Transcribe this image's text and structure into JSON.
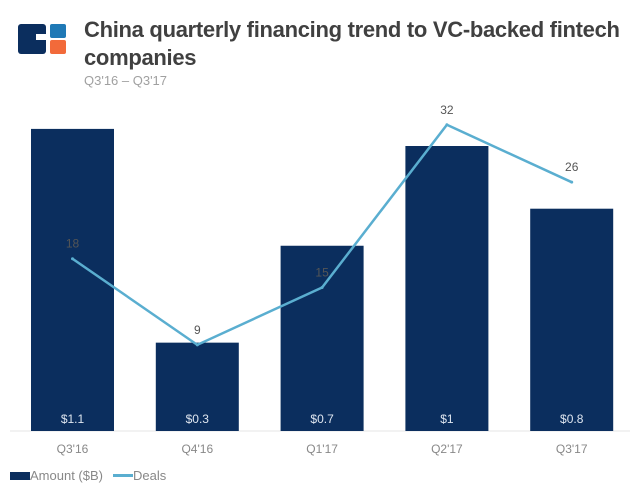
{
  "logo": {
    "colors": [
      "#0b2e5e",
      "#1f79b6",
      "#f26a3a"
    ]
  },
  "chart_data": {
    "type": "bar",
    "title": "China quarterly financing trend to VC-backed fintech companies",
    "subtitle": "Q3'16 – Q3'17",
    "categories": [
      "Q3'16",
      "Q4'16",
      "Q1'17",
      "Q2'17",
      "Q3'17"
    ],
    "series": [
      {
        "name": "Amount ($B)",
        "type": "bar",
        "color": "#0b2e5e",
        "values": [
          1.06,
          0.31,
          0.65,
          1.0,
          0.78
        ],
        "labels": [
          "$1.1",
          "$0.3",
          "$0.7",
          "$1",
          "$0.8"
        ]
      },
      {
        "name": "Deals",
        "type": "line",
        "color": "#5aaed0",
        "values": [
          18,
          9,
          15,
          32,
          26
        ],
        "labels": [
          "18",
          "9",
          "15",
          "32",
          "26"
        ]
      }
    ],
    "legend": "bottom-left",
    "grid": false
  }
}
